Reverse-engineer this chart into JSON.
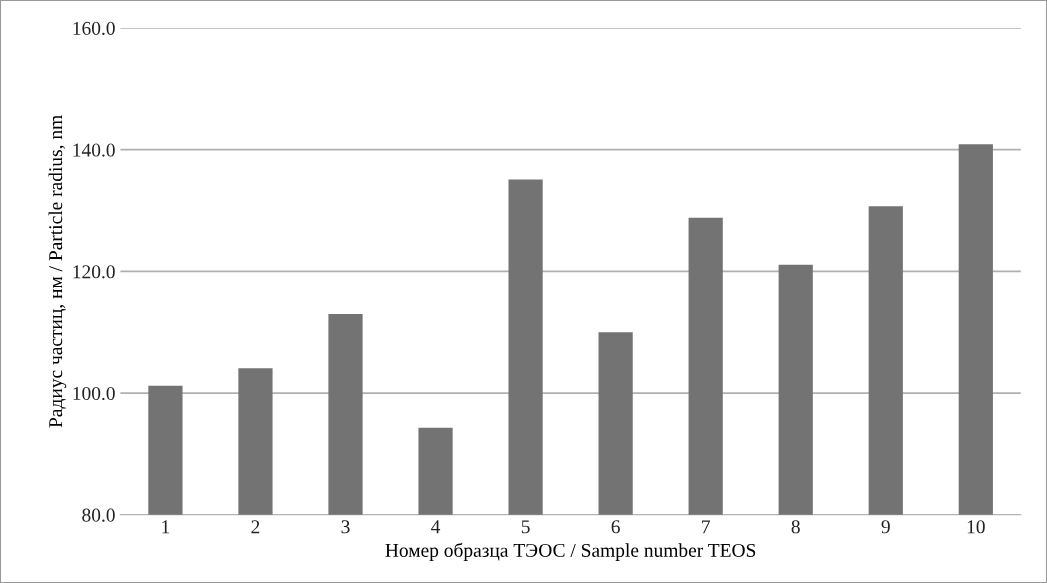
{
  "chart_data": {
    "type": "bar",
    "xlabel": "Номер образца ТЭОС / Sample number TEOS",
    "ylabel": "Радиус частиц, нм / Particle radius, nm",
    "categories": [
      "1",
      "2",
      "3",
      "4",
      "5",
      "6",
      "7",
      "8",
      "9",
      "10"
    ],
    "values": [
      101.2,
      104.1,
      113.0,
      94.3,
      135.1,
      110.0,
      128.8,
      121.1,
      130.7,
      140.9
    ],
    "color": "#737373",
    "ylim": [
      80,
      160
    ],
    "yticks": [
      {
        "value": 80,
        "label": "80.0"
      },
      {
        "value": 100,
        "label": "100.0"
      },
      {
        "value": 120,
        "label": "120.0"
      },
      {
        "value": 140,
        "label": "140.0"
      },
      {
        "value": 160,
        "label": "160.0"
      }
    ],
    "grid": "y"
  }
}
